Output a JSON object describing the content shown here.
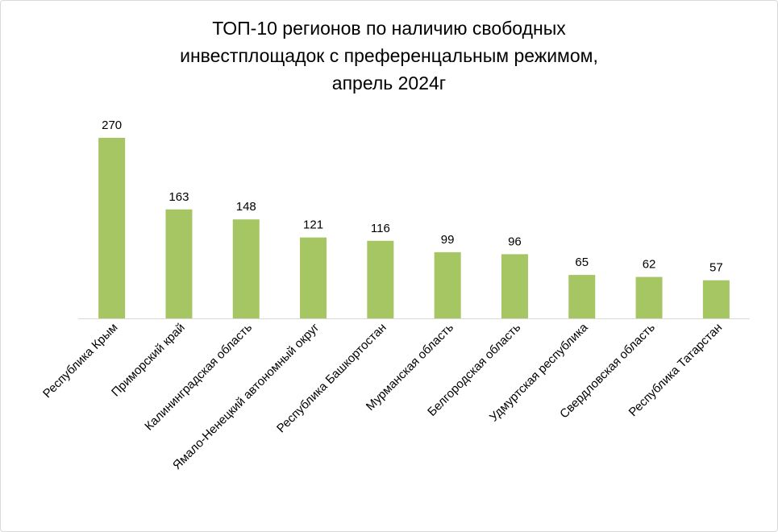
{
  "chart_data": {
    "type": "bar",
    "title_lines": [
      "ТОП-10 регионов по наличию свободных",
      "инвестплощадок с преференцальным режимом,",
      "апрель 2024г"
    ],
    "categories": [
      "Республика Крым",
      "Приморский край",
      "Калининградская  область",
      "Ямало-Ненецкий автономный округ",
      "Республика Башкортостан",
      "Мурманская область",
      "Белгородская область",
      "Удмуртская республика",
      "Свердловская область",
      "Республика Татарстан"
    ],
    "values": [
      270,
      163,
      148,
      121,
      116,
      99,
      96,
      65,
      62,
      57
    ],
    "xlabel": "",
    "ylabel": "",
    "ylim": [
      0,
      300
    ],
    "grid": false,
    "legend": "none",
    "bar_color": "#A5C663"
  }
}
